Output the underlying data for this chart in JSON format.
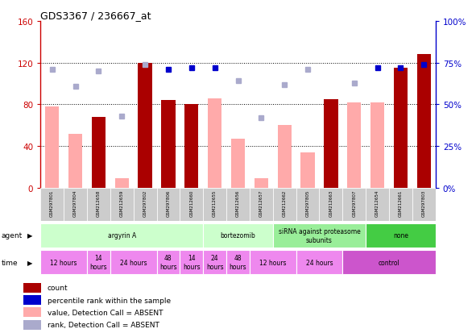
{
  "title": "GDS3367 / 236667_at",
  "samples": [
    "GSM297801",
    "GSM297804",
    "GSM212658",
    "GSM212659",
    "GSM297802",
    "GSM297806",
    "GSM212660",
    "GSM212655",
    "GSM212656",
    "GSM212657",
    "GSM212662",
    "GSM297805",
    "GSM212663",
    "GSM297807",
    "GSM212654",
    "GSM212661",
    "GSM297803"
  ],
  "count_values": [
    null,
    null,
    68,
    null,
    120,
    84,
    80,
    null,
    null,
    null,
    null,
    null,
    85,
    null,
    null,
    115,
    128
  ],
  "count_absent": [
    78,
    52,
    null,
    9,
    null,
    null,
    null,
    86,
    47,
    9,
    60,
    34,
    null,
    82,
    82,
    null,
    null
  ],
  "rank_values": [
    null,
    null,
    null,
    null,
    null,
    71,
    72,
    72,
    null,
    null,
    null,
    null,
    null,
    null,
    72,
    72,
    74
  ],
  "rank_absent": [
    71,
    61,
    70,
    43,
    74,
    null,
    null,
    null,
    64,
    42,
    62,
    71,
    null,
    63,
    null,
    null,
    null
  ],
  "count_color": "#aa0000",
  "count_absent_color": "#ffaaaa",
  "rank_color": "#0000cc",
  "rank_absent_color": "#aaaacc",
  "ylim_left": [
    0,
    160
  ],
  "ylim_right": [
    0,
    100
  ],
  "yticks_left": [
    0,
    40,
    80,
    120,
    160
  ],
  "yticks_right": [
    0,
    25,
    50,
    75,
    100
  ],
  "ytick_labels_right": [
    "0%",
    "25%",
    "50%",
    "75%",
    "100%"
  ],
  "grid_lines": [
    40,
    80,
    120
  ],
  "agent_groups": [
    {
      "label": "argyrin A",
      "start": 0,
      "end": 7,
      "color": "#ccffcc"
    },
    {
      "label": "bortezomib",
      "start": 7,
      "end": 10,
      "color": "#ccffcc"
    },
    {
      "label": "siRNA against proteasome\nsubunits",
      "start": 10,
      "end": 14,
      "color": "#99ee99"
    },
    {
      "label": "none",
      "start": 14,
      "end": 17,
      "color": "#44cc44"
    }
  ],
  "time_groups": [
    {
      "label": "12 hours",
      "start": 0,
      "end": 2,
      "color": "#ee88ee"
    },
    {
      "label": "14\nhours",
      "start": 2,
      "end": 3,
      "color": "#ee88ee"
    },
    {
      "label": "24 hours",
      "start": 3,
      "end": 5,
      "color": "#ee88ee"
    },
    {
      "label": "48\nhours",
      "start": 5,
      "end": 6,
      "color": "#ee88ee"
    },
    {
      "label": "14\nhours",
      "start": 6,
      "end": 7,
      "color": "#ee88ee"
    },
    {
      "label": "24\nhours",
      "start": 7,
      "end": 8,
      "color": "#ee88ee"
    },
    {
      "label": "48\nhours",
      "start": 8,
      "end": 9,
      "color": "#ee88ee"
    },
    {
      "label": "12 hours",
      "start": 9,
      "end": 11,
      "color": "#ee88ee"
    },
    {
      "label": "24 hours",
      "start": 11,
      "end": 13,
      "color": "#ee88ee"
    },
    {
      "label": "control",
      "start": 13,
      "end": 17,
      "color": "#cc55cc"
    }
  ],
  "bar_width": 0.6,
  "dot_size": 35,
  "left_axis_color": "#cc0000",
  "right_axis_color": "#0000cc",
  "bg_color": "#ffffff",
  "sample_bg_color": "#cccccc",
  "legend_items": [
    {
      "label": "count",
      "color": "#aa0000"
    },
    {
      "label": "percentile rank within the sample",
      "color": "#0000cc"
    },
    {
      "label": "value, Detection Call = ABSENT",
      "color": "#ffaaaa"
    },
    {
      "label": "rank, Detection Call = ABSENT",
      "color": "#aaaacc"
    }
  ]
}
